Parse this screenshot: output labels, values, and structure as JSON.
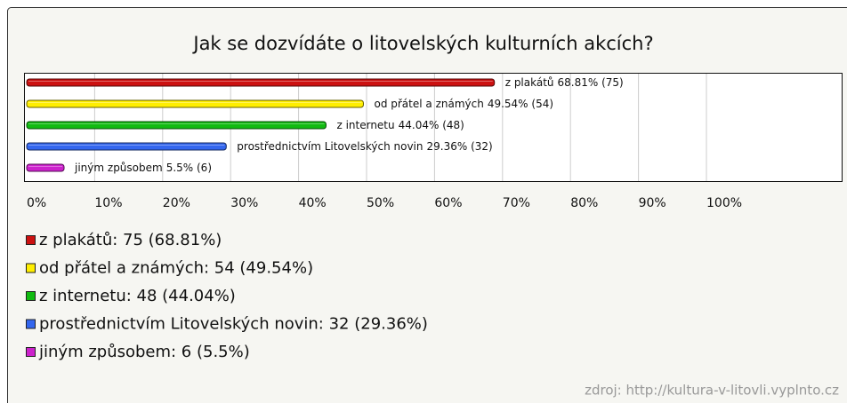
{
  "chart_data": {
    "type": "bar",
    "orientation": "horizontal",
    "title": "Jak se dozvídáte o litovelských kulturních akcích?",
    "categories": [
      "z plakátů",
      "od přátel a známých",
      "z internetu",
      "prostřednictvím Litovelských novin",
      "jiným způsobem"
    ],
    "values": [
      68.81,
      49.54,
      44.04,
      29.36,
      5.5
    ],
    "value_labels": [
      "68.81% (75)",
      "49.54% (54)",
      "44.04% (48)",
      "29.36% (32)",
      "5.5% (6)"
    ],
    "colors": [
      "#cc1111",
      "#ffee00",
      "#11bb11",
      "#3366ee",
      "#cc22cc"
    ],
    "xlim": [
      0,
      100
    ],
    "xticks": [
      {
        "value": 0,
        "label": "0%"
      },
      {
        "value": 10,
        "label": "10%"
      },
      {
        "value": 20,
        "label": "20%"
      },
      {
        "value": 30,
        "label": "30%"
      },
      {
        "value": 40,
        "label": "40%"
      },
      {
        "value": 50,
        "label": "50%"
      },
      {
        "value": 60,
        "label": "60%"
      },
      {
        "value": 70,
        "label": "70%"
      },
      {
        "value": 80,
        "label": "80%"
      },
      {
        "value": 90,
        "label": "90%"
      },
      {
        "value": 100,
        "label": "100%"
      }
    ],
    "grid": true,
    "legend": [
      "z plakátů: 75 (68.81%)",
      "od přátel a známých: 54 (49.54%)",
      "z internetu: 48 (44.04%)",
      "prostřednictvím Litovelských novin: 32 (29.36%)",
      "jiným způsobem: 6 (5.5%)"
    ],
    "source": "zdroj: http://kultura-v-litovli.vyplnto.cz"
  }
}
